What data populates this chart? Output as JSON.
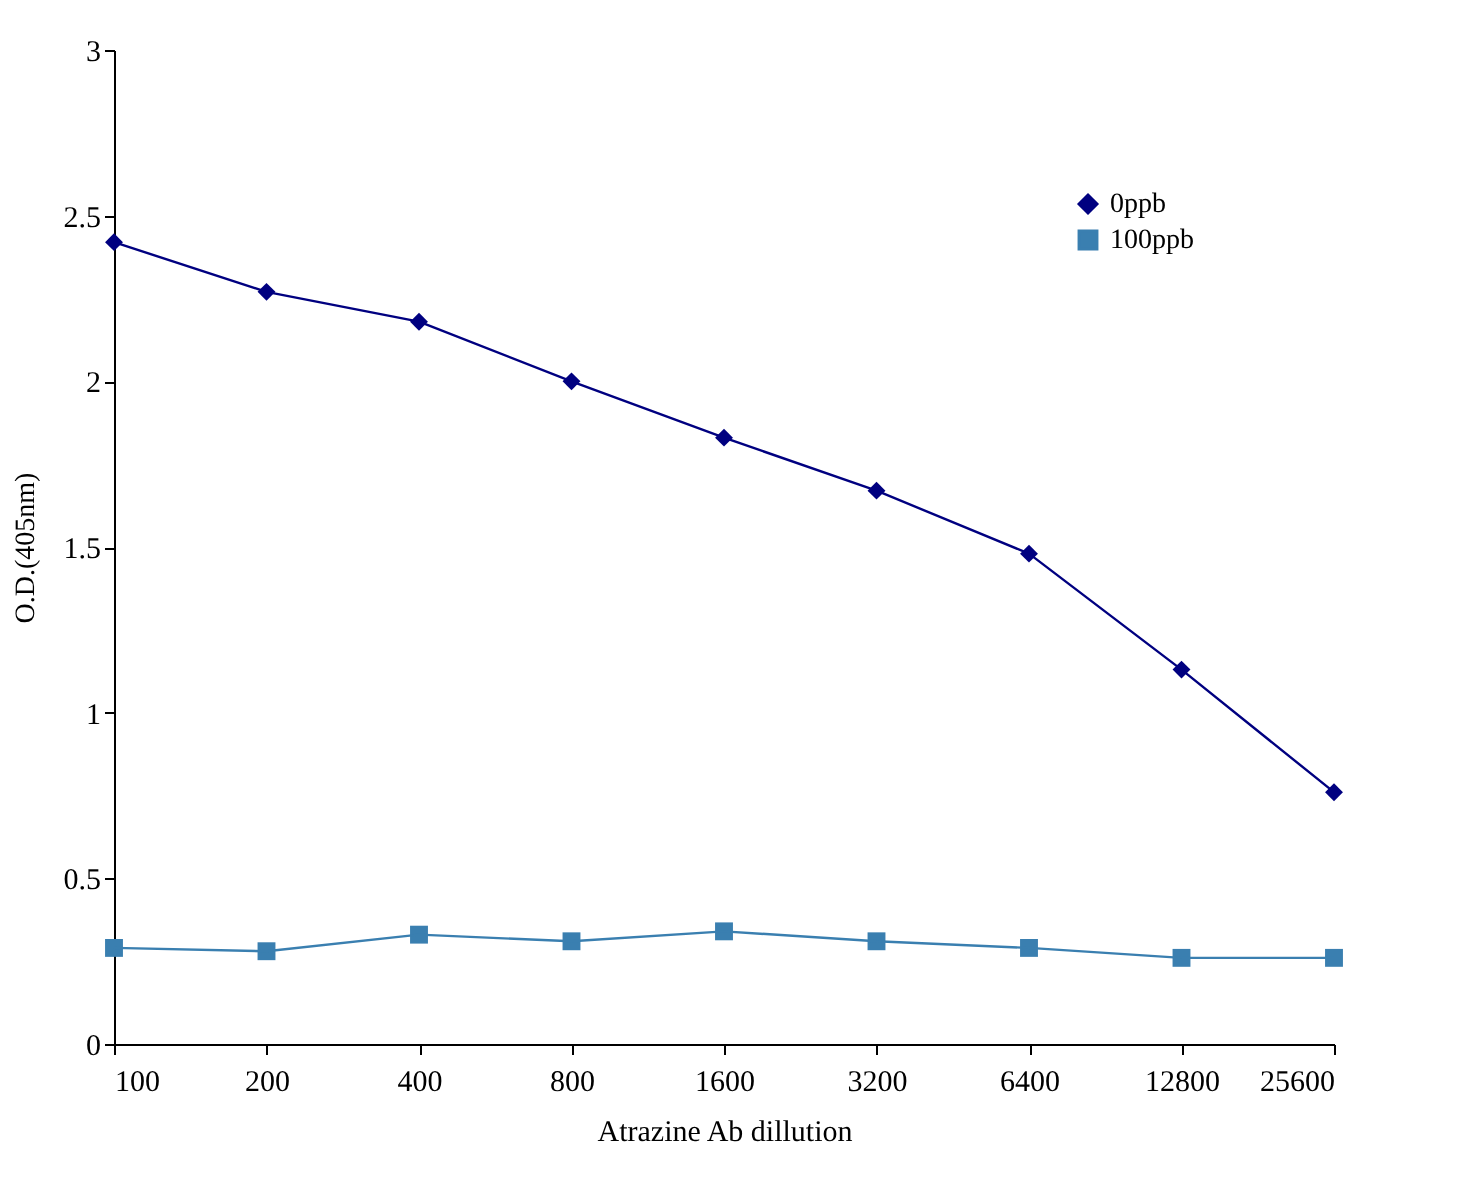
{
  "chart_data": {
    "type": "line",
    "xlabel": "Atrazine Ab dillution",
    "ylabel": "O.D.(405nm)",
    "categories": [
      "100",
      "200",
      "400",
      "800",
      "1600",
      "3200",
      "6400",
      "12800",
      "25600"
    ],
    "series": [
      {
        "name": "0ppb",
        "color": "#000080",
        "marker": "diamond",
        "values": [
          2.42,
          2.27,
          2.18,
          2.0,
          1.83,
          1.67,
          1.48,
          1.13,
          0.76
        ]
      },
      {
        "name": "100ppb",
        "color": "#3a7fb0",
        "marker": "square",
        "values": [
          0.29,
          0.28,
          0.33,
          0.31,
          0.34,
          0.31,
          0.29,
          0.26,
          0.26
        ]
      }
    ],
    "ylim": [
      0,
      3
    ],
    "yticks": [
      0,
      0.5,
      1,
      1.5,
      2,
      2.5,
      3
    ],
    "grid": false,
    "legend": "top right",
    "line_style": "solid"
  }
}
